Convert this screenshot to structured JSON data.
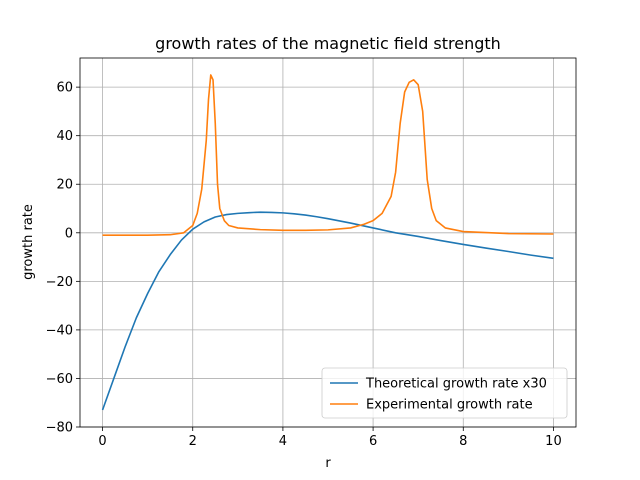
{
  "chart_data": {
    "type": "line",
    "title": "growth rates of the magnetic field strength",
    "xlabel": "r",
    "ylabel": "growth rate",
    "xlim": [
      -0.5,
      10.5
    ],
    "ylim": [
      -80,
      72
    ],
    "xticks": [
      0,
      2,
      4,
      6,
      8,
      10
    ],
    "xtick_labels": [
      "0",
      "2",
      "4",
      "6",
      "8",
      "10"
    ],
    "yticks": [
      -80,
      -60,
      -40,
      -20,
      0,
      20,
      40,
      60
    ],
    "ytick_labels": [
      "−80",
      "−60",
      "−40",
      "−20",
      "0",
      "20",
      "40",
      "60"
    ],
    "grid": true,
    "legend_position": "lower-right",
    "series": [
      {
        "name": "Theoretical growth rate x30",
        "color": "#1f77b4",
        "x": [
          0,
          0.25,
          0.5,
          0.75,
          1,
          1.25,
          1.5,
          1.75,
          2,
          2.25,
          2.5,
          2.75,
          3,
          3.25,
          3.5,
          3.75,
          4,
          4.25,
          4.5,
          4.75,
          5,
          5.5,
          6,
          6.5,
          7,
          7.5,
          8,
          8.5,
          9,
          9.5,
          10
        ],
        "y": [
          -73,
          -60,
          -47,
          -35,
          -25,
          -16,
          -9,
          -3,
          1.5,
          4.5,
          6.5,
          7.5,
          8,
          8.3,
          8.5,
          8.4,
          8.2,
          7.8,
          7.3,
          6.6,
          5.8,
          4.0,
          2.0,
          0,
          -1.5,
          -3.2,
          -4.8,
          -6.3,
          -7.7,
          -9.2,
          -10.5
        ]
      },
      {
        "name": "Experimental growth rate",
        "color": "#ff7f0e",
        "x": [
          0,
          1,
          1.5,
          1.8,
          2.0,
          2.1,
          2.2,
          2.3,
          2.35,
          2.4,
          2.45,
          2.5,
          2.55,
          2.6,
          2.7,
          2.8,
          3.0,
          3.5,
          4.0,
          4.5,
          5.0,
          5.5,
          5.8,
          6.0,
          6.2,
          6.4,
          6.5,
          6.6,
          6.7,
          6.8,
          6.9,
          7.0,
          7.1,
          7.2,
          7.3,
          7.4,
          7.6,
          8.0,
          9.0,
          10.0
        ],
        "y": [
          -1,
          -1,
          -0.8,
          0,
          3,
          8,
          18,
          38,
          55,
          65,
          63,
          45,
          20,
          10,
          5,
          3,
          2,
          1.3,
          1,
          1,
          1.2,
          2,
          3.5,
          5,
          8,
          15,
          25,
          45,
          58,
          62,
          63,
          61,
          50,
          22,
          10,
          5,
          2,
          0.5,
          -0.3,
          -0.5
        ]
      }
    ]
  }
}
